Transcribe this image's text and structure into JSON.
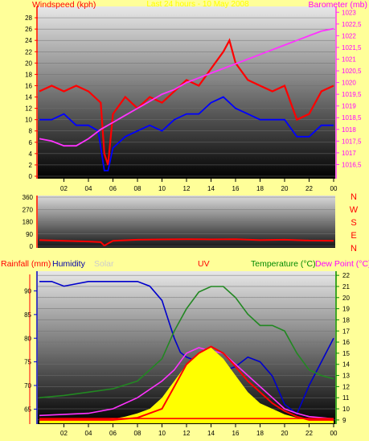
{
  "chart_data": [
    {
      "type": "line",
      "ylabel": "Windspeed (kph)",
      "y2label": "Barometer (mb)",
      "title": "Last 24 hours - 10 May 2008",
      "x_ticks": [
        "02",
        "04",
        "06",
        "08",
        "10",
        "12",
        "14",
        "16",
        "18",
        "20",
        "22",
        "00"
      ],
      "ylim": [
        0,
        30
      ],
      "y_ticks": [
        "0",
        "2",
        "4",
        "6",
        "8",
        "10",
        "12",
        "14",
        "16",
        "18",
        "20",
        "22",
        "24",
        "26",
        "28"
      ],
      "y2lim": [
        1016,
        1023.25
      ],
      "y2_ticks": [
        "1016,5",
        "1017",
        "1017,5",
        "1018",
        "1018,5",
        "1019",
        "1019,5",
        "1020",
        "1020,5",
        "1021",
        "1021,5",
        "1022",
        "1022,5",
        "1023"
      ],
      "series": [
        {
          "color": "#ff0000",
          "x": [
            0,
            1,
            2,
            3,
            4,
            5,
            5.3,
            5.6,
            6,
            7,
            8,
            9,
            10,
            11,
            12,
            13,
            14,
            15,
            15.5,
            16,
            17,
            18,
            19,
            20,
            21,
            22,
            23,
            24
          ],
          "values": [
            15,
            16,
            15,
            16,
            15,
            13,
            4,
            2,
            11,
            14,
            12,
            14,
            13,
            15,
            17,
            16,
            19,
            22,
            24,
            20,
            17,
            16,
            15,
            16,
            10,
            11,
            15,
            16
          ]
        },
        {
          "color": "#0000ff",
          "x": [
            0,
            1,
            2,
            3,
            4,
            4.8,
            5.3,
            5.6,
            6,
            7,
            8,
            9,
            10,
            11,
            12,
            13,
            14,
            15,
            16,
            17,
            18,
            19,
            20,
            21,
            22,
            23,
            24
          ],
          "values": [
            10,
            10,
            11,
            9,
            9,
            8,
            1,
            1,
            5,
            7,
            8,
            9,
            8,
            10,
            11,
            11,
            13,
            14,
            12,
            11,
            10,
            10,
            10,
            7,
            7,
            9,
            9
          ]
        },
        {
          "color": "#ff33ff",
          "axis": "y2",
          "x": [
            0,
            1,
            2,
            3,
            4,
            5,
            6,
            7,
            8,
            9,
            10,
            11,
            12,
            13,
            14,
            15,
            16,
            17,
            18,
            19,
            20,
            21,
            22,
            23,
            24
          ],
          "values": [
            1017.6,
            1017.5,
            1017.3,
            1017.3,
            1017.6,
            1018,
            1018.3,
            1018.6,
            1018.9,
            1019.2,
            1019.5,
            1019.7,
            1020,
            1020.2,
            1020.4,
            1020.6,
            1020.8,
            1021,
            1021.2,
            1021.4,
            1021.6,
            1021.8,
            1022,
            1022.2,
            1022.3
          ]
        }
      ]
    },
    {
      "type": "line",
      "ylim": [
        0,
        360
      ],
      "y_ticks": [
        "0",
        "90",
        "180",
        "270",
        "360"
      ],
      "direction_labels": [
        "N",
        "W",
        "S",
        "E",
        "N"
      ],
      "series": [
        {
          "color": "#ff0000",
          "x": [
            0,
            2,
            4,
            5,
            5.3,
            5.7,
            6,
            8,
            10,
            12,
            14,
            16,
            18,
            20,
            22,
            24
          ],
          "values": [
            45,
            40,
            35,
            30,
            5,
            25,
            40,
            48,
            50,
            52,
            50,
            52,
            45,
            48,
            42,
            40
          ]
        }
      ]
    },
    {
      "type": "area",
      "labels": {
        "rain": "Rainfall (mm)",
        "humidity": "Humidity",
        "solar": "Solar",
        "uv": "UV",
        "temp": "Temperature (°C)",
        "dew": "Dew Point (°C)"
      },
      "x_ticks": [
        "02",
        "04",
        "06",
        "08",
        "10",
        "12",
        "14",
        "16",
        "18",
        "20",
        "22",
        "00"
      ],
      "y_left_lim": [
        62,
        94
      ],
      "y_left_ticks": [
        "65",
        "70",
        "75",
        "80",
        "85",
        "90"
      ],
      "y_right_lim": [
        8.7,
        22.3
      ],
      "y_right_ticks": [
        "9",
        "10",
        "11",
        "12",
        "13",
        "14",
        "15",
        "16",
        "17",
        "18",
        "19",
        "20",
        "21",
        "22"
      ],
      "series": [
        {
          "name": "Humidity",
          "color": "#0000cc",
          "axis": "left",
          "x": [
            0,
            1,
            2,
            4,
            6,
            7,
            8,
            9,
            10,
            10.5,
            11,
            11.5,
            12,
            13,
            14,
            15,
            16,
            17,
            18,
            19,
            20,
            21,
            22,
            23,
            24
          ],
          "values": [
            92,
            92,
            91,
            92,
            92,
            92,
            92,
            91,
            88,
            84,
            80,
            77,
            76,
            75,
            74,
            73,
            74,
            76,
            75,
            72,
            66,
            64,
            70,
            75,
            80
          ]
        },
        {
          "name": "Temperature (°C)",
          "color": "#228822",
          "axis": "right",
          "x": [
            0,
            2,
            4,
            6,
            8,
            10,
            11,
            12,
            13,
            14,
            15,
            16,
            17,
            18,
            19,
            20,
            21,
            22,
            23,
            24
          ],
          "values": [
            11,
            11.2,
            11.5,
            11.8,
            12.5,
            14.5,
            17,
            19,
            20.5,
            21,
            21,
            20,
            18.5,
            17.5,
            17.5,
            17,
            15,
            13.5,
            13,
            12.7
          ]
        },
        {
          "name": "Dew Point (°C)",
          "color": "#ff33ff",
          "axis": "right",
          "x": [
            0,
            2,
            4,
            6,
            8,
            10,
            11,
            12,
            13,
            14,
            15,
            16,
            17,
            18,
            19,
            20,
            21,
            22,
            23,
            24
          ],
          "values": [
            9.4,
            9.5,
            9.6,
            10,
            11,
            12.5,
            13.5,
            15,
            15.5,
            15.2,
            15,
            14,
            13,
            12,
            11,
            10,
            9.6,
            9.3,
            9.2,
            9.1
          ]
        },
        {
          "name": "Solar",
          "color": "#ffff00",
          "axis": "right",
          "x": [
            0,
            5,
            6,
            7,
            8,
            9,
            10,
            11,
            12,
            13,
            14,
            15,
            16,
            17,
            18,
            19,
            20,
            21,
            22,
            24
          ],
          "values": [
            9,
            9,
            9.1,
            9.3,
            9.6,
            10,
            11,
            12.5,
            14,
            15,
            15.5,
            14.5,
            13,
            11.5,
            10.5,
            10,
            9.5,
            9.2,
            9,
            9
          ]
        },
        {
          "name": "UV",
          "color": "#ff0000",
          "axis": "right",
          "x": [
            0,
            5,
            6,
            8,
            10,
            11,
            12,
            13,
            14,
            15,
            16,
            17,
            18,
            19,
            20,
            21,
            22,
            24
          ],
          "values": [
            9,
            9,
            9,
            9.2,
            10,
            12,
            14,
            15,
            15.6,
            15,
            13.8,
            12.5,
            11.5,
            10.5,
            9.8,
            9.3,
            9,
            9
          ]
        },
        {
          "name": "Rainfall (mm)",
          "color": "#ff0000",
          "axis": "left",
          "x": [
            0,
            24
          ],
          "values": [
            63,
            63
          ]
        }
      ]
    }
  ]
}
